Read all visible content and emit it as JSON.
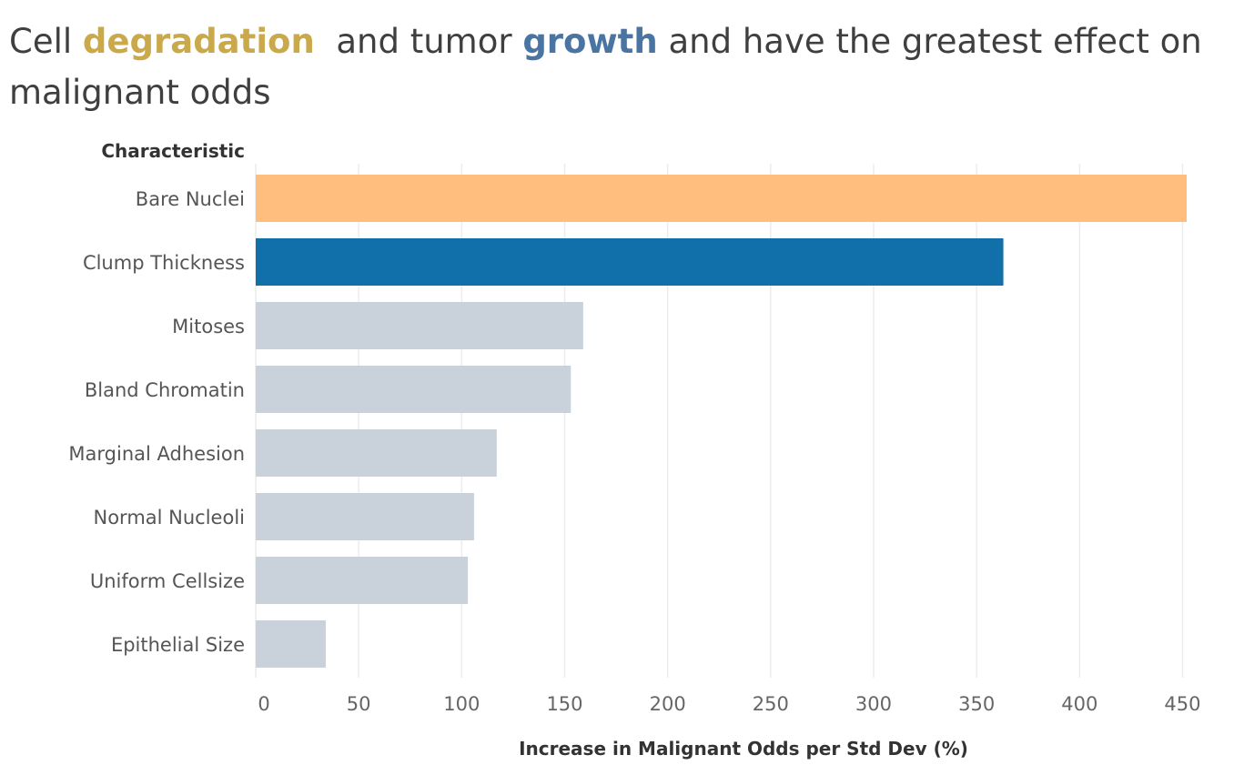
{
  "title": {
    "part1": "Cell ",
    "highlight1": "degradation",
    "part2": "  and tumor ",
    "highlight2": "growth",
    "part3": " and have the greatest effect on malignant odds"
  },
  "colors": {
    "highlight1": "#c9a94a",
    "highlight2": "#4a74a1",
    "default_bar": "#c9d1db",
    "grid": "#ececec"
  },
  "chart_data": {
    "type": "bar",
    "orientation": "horizontal",
    "ylabel": "Characteristic",
    "xlabel": "Increase in Malignant Odds per Std Dev (%)",
    "categories": [
      "Bare Nuclei",
      "Clump Thickness",
      "Mitoses",
      "Bland Chromatin",
      "Marginal Adhesion",
      "Normal Nucleoli",
      "Uniform Cellsize",
      "Epithelial Size"
    ],
    "values": [
      452,
      363,
      159,
      153,
      117,
      106,
      103,
      34
    ],
    "bar_colors": [
      "#ffbe7d",
      "#1170aa",
      "#c9d1db",
      "#c9d1db",
      "#c9d1db",
      "#c9d1db",
      "#c9d1db",
      "#c9d1db"
    ],
    "xlim": [
      0,
      460
    ],
    "xticks": [
      0,
      50,
      100,
      150,
      200,
      250,
      300,
      350,
      400,
      450
    ],
    "grid": true,
    "legend": "none"
  }
}
